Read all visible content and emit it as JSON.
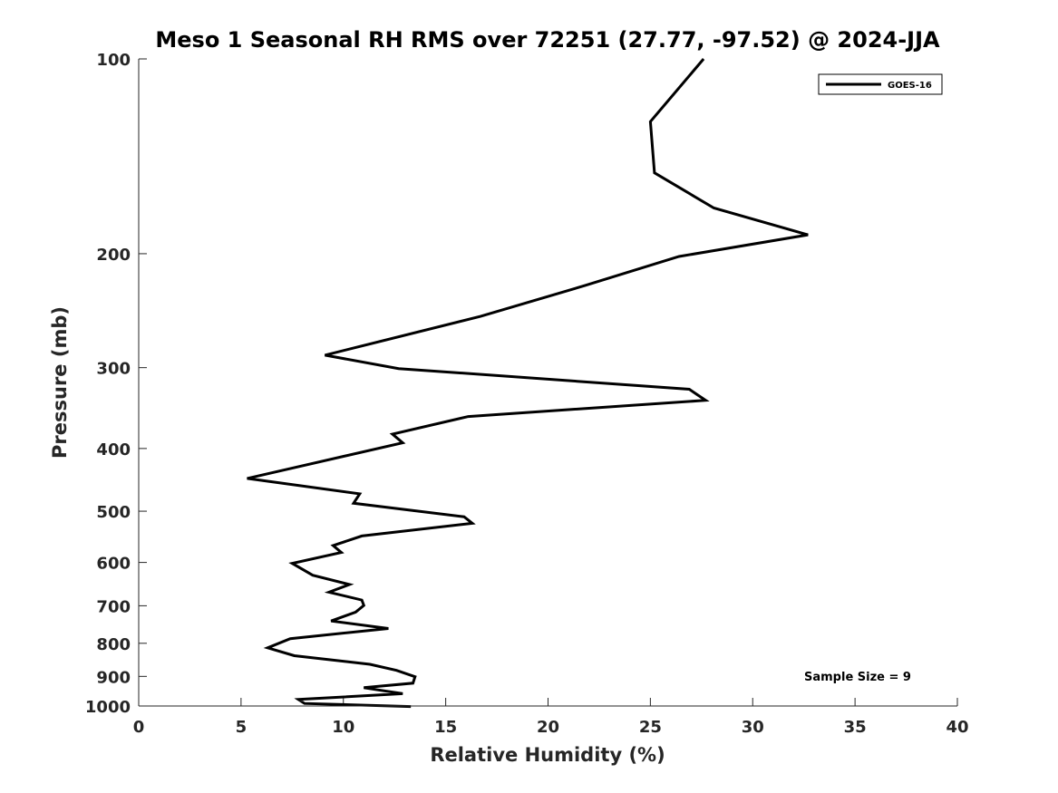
{
  "chart_data": {
    "type": "line",
    "title": "Meso 1 Seasonal RH RMS over 72251 (27.77, -97.52) @ 2024-JJA",
    "xlabel": "Relative Humidity (%)",
    "ylabel": "Pressure (mb)",
    "xlim": [
      0,
      40
    ],
    "ylim": [
      100,
      1000
    ],
    "y_scale": "log",
    "y_reversed": true,
    "x_ticks": [
      "0",
      "5",
      "10",
      "15",
      "20",
      "25",
      "30",
      "35",
      "40"
    ],
    "y_ticks": [
      "100",
      "200",
      "300",
      "400",
      "500",
      "600",
      "700",
      "800",
      "900",
      "1000"
    ],
    "grid": false,
    "legend_position": "top-right",
    "series": [
      {
        "name": "GOES-16",
        "color": "#000000",
        "points": [
          [
            27.6,
            100
          ],
          [
            25.0,
            125
          ],
          [
            25.2,
            150
          ],
          [
            28.1,
            170
          ],
          [
            32.7,
            187
          ],
          [
            26.4,
            202
          ],
          [
            21.8,
            224
          ],
          [
            16.7,
            250
          ],
          [
            9.1,
            287
          ],
          [
            12.7,
            301
          ],
          [
            26.9,
            324
          ],
          [
            27.7,
            337
          ],
          [
            16.1,
            357
          ],
          [
            12.4,
            380
          ],
          [
            12.9,
            392
          ],
          [
            5.3,
            445
          ],
          [
            10.8,
            470
          ],
          [
            10.5,
            486
          ],
          [
            15.9,
            510
          ],
          [
            16.3,
            522
          ],
          [
            10.9,
            546
          ],
          [
            9.5,
            565
          ],
          [
            9.9,
            579
          ],
          [
            7.5,
            602
          ],
          [
            8.5,
            628
          ],
          [
            10.3,
            649
          ],
          [
            9.3,
            667
          ],
          [
            10.9,
            686
          ],
          [
            11.0,
            699
          ],
          [
            10.6,
            716
          ],
          [
            9.4,
            739
          ],
          [
            12.2,
            759
          ],
          [
            7.4,
            787
          ],
          [
            6.3,
            813
          ],
          [
            7.6,
            836
          ],
          [
            11.3,
            862
          ],
          [
            12.6,
            881
          ],
          [
            13.5,
            901
          ],
          [
            13.4,
            922
          ],
          [
            11.0,
            937
          ],
          [
            12.9,
            957
          ],
          [
            7.8,
            977
          ],
          [
            8.1,
            991
          ],
          [
            13.3,
            1002
          ]
        ]
      }
    ],
    "annotations": [
      "Sample Size = 9"
    ]
  }
}
